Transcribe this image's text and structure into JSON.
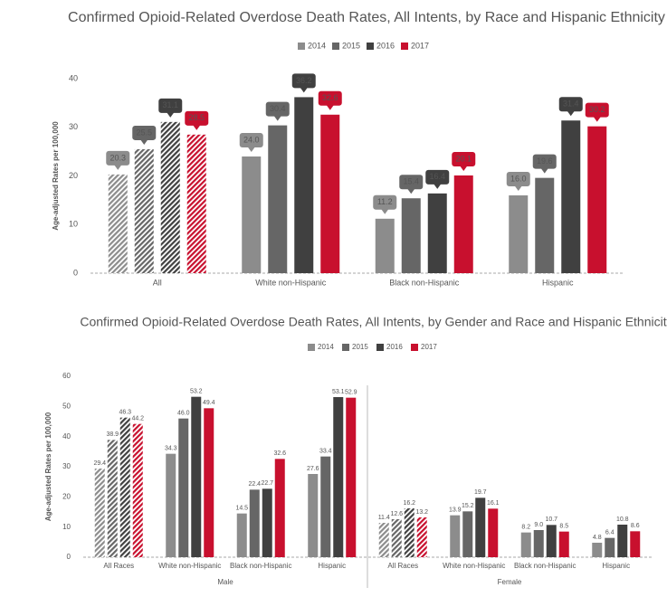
{
  "chart_data": [
    {
      "type": "bar",
      "title": "Confirmed Opioid-Related Overdose Death Rates, All Intents, by Race and Hispanic Ethnicity",
      "y_label": "Age-adjusted Rates per 100,000",
      "categories": [
        "All",
        "White non-Hispanic",
        "Black non-Hispanic",
        "Hispanic"
      ],
      "hatched": [
        true,
        false,
        false,
        false
      ],
      "series": [
        {
          "name": "2014",
          "color": "#8c8c8c",
          "values": [
            20.3,
            24.0,
            11.2,
            16.0
          ],
          "value_labels": [
            "20.3",
            "24.0",
            "11.2",
            "16.0"
          ]
        },
        {
          "name": "2015",
          "color": "#666666",
          "values": [
            25.5,
            30.4,
            15.4,
            19.6
          ],
          "value_labels": [
            "25.5",
            "30.4",
            "15.4",
            "19.6"
          ]
        },
        {
          "name": "2016",
          "color": "#404040",
          "values": [
            31.1,
            36.2,
            16.4,
            31.4
          ],
          "value_labels": [
            "31.1",
            "36.2",
            "16.4",
            "31.4"
          ]
        },
        {
          "name": "2017",
          "color": "#c8102e",
          "values": [
            28.5,
            32.6,
            20.1,
            30.2
          ],
          "value_labels": [
            "28.5",
            "32.6",
            "20.1",
            "30.2"
          ]
        }
      ],
      "ylim": [
        0,
        40
      ],
      "yticks": [
        0,
        10,
        20,
        30,
        40
      ],
      "label_style": "callout"
    },
    {
      "type": "bar",
      "title": "Confirmed Opioid-Related Overdose Death Rates, All Intents, by Gender and Race and Hispanic Ethnicity",
      "y_label": "Age-adjusted Rates per 100,000",
      "groups": [
        "Male",
        "Female"
      ],
      "categories": [
        "All Races",
        "White non-Hispanic",
        "Black non-Hispanic",
        "Hispanic",
        "All Races",
        "White non-Hispanic",
        "Black non-Hispanic",
        "Hispanic"
      ],
      "hatched": [
        true,
        false,
        false,
        false,
        true,
        false,
        false,
        false
      ],
      "series": [
        {
          "name": "2014",
          "color": "#8c8c8c",
          "values": [
            29.4,
            34.3,
            14.5,
            27.6,
            11.4,
            13.9,
            8.2,
            4.8
          ],
          "value_labels": [
            "29.4",
            "34.3",
            "14.5",
            "27.6",
            "11.4",
            "13.9",
            "8.2",
            "4.8"
          ]
        },
        {
          "name": "2015",
          "color": "#666666",
          "values": [
            38.9,
            46.0,
            22.4,
            33.4,
            12.6,
            15.2,
            9.0,
            6.4
          ],
          "value_labels": [
            "38.9",
            "46.0",
            "22.4",
            "33.4",
            "12.6",
            "15.2",
            "9.0",
            "6.4"
          ]
        },
        {
          "name": "2016",
          "color": "#404040",
          "values": [
            46.3,
            53.2,
            22.7,
            53.1,
            16.2,
            19.7,
            10.7,
            10.8
          ],
          "value_labels": [
            "46.3",
            "53.2",
            "22.7",
            "53.1",
            "16.2",
            "19.7",
            "10.7",
            "10.8"
          ]
        },
        {
          "name": "2017",
          "color": "#c8102e",
          "values": [
            44.2,
            49.4,
            32.6,
            52.9,
            13.2,
            16.1,
            8.5,
            8.6
          ],
          "value_labels": [
            "44.2",
            "49.4",
            "32.6",
            "52.9",
            "13.2",
            "16.1",
            "8.5",
            "8.6"
          ]
        }
      ],
      "ylim": [
        0,
        60
      ],
      "yticks": [
        0,
        10,
        20,
        30,
        40,
        50,
        60
      ],
      "label_style": "plain"
    }
  ]
}
